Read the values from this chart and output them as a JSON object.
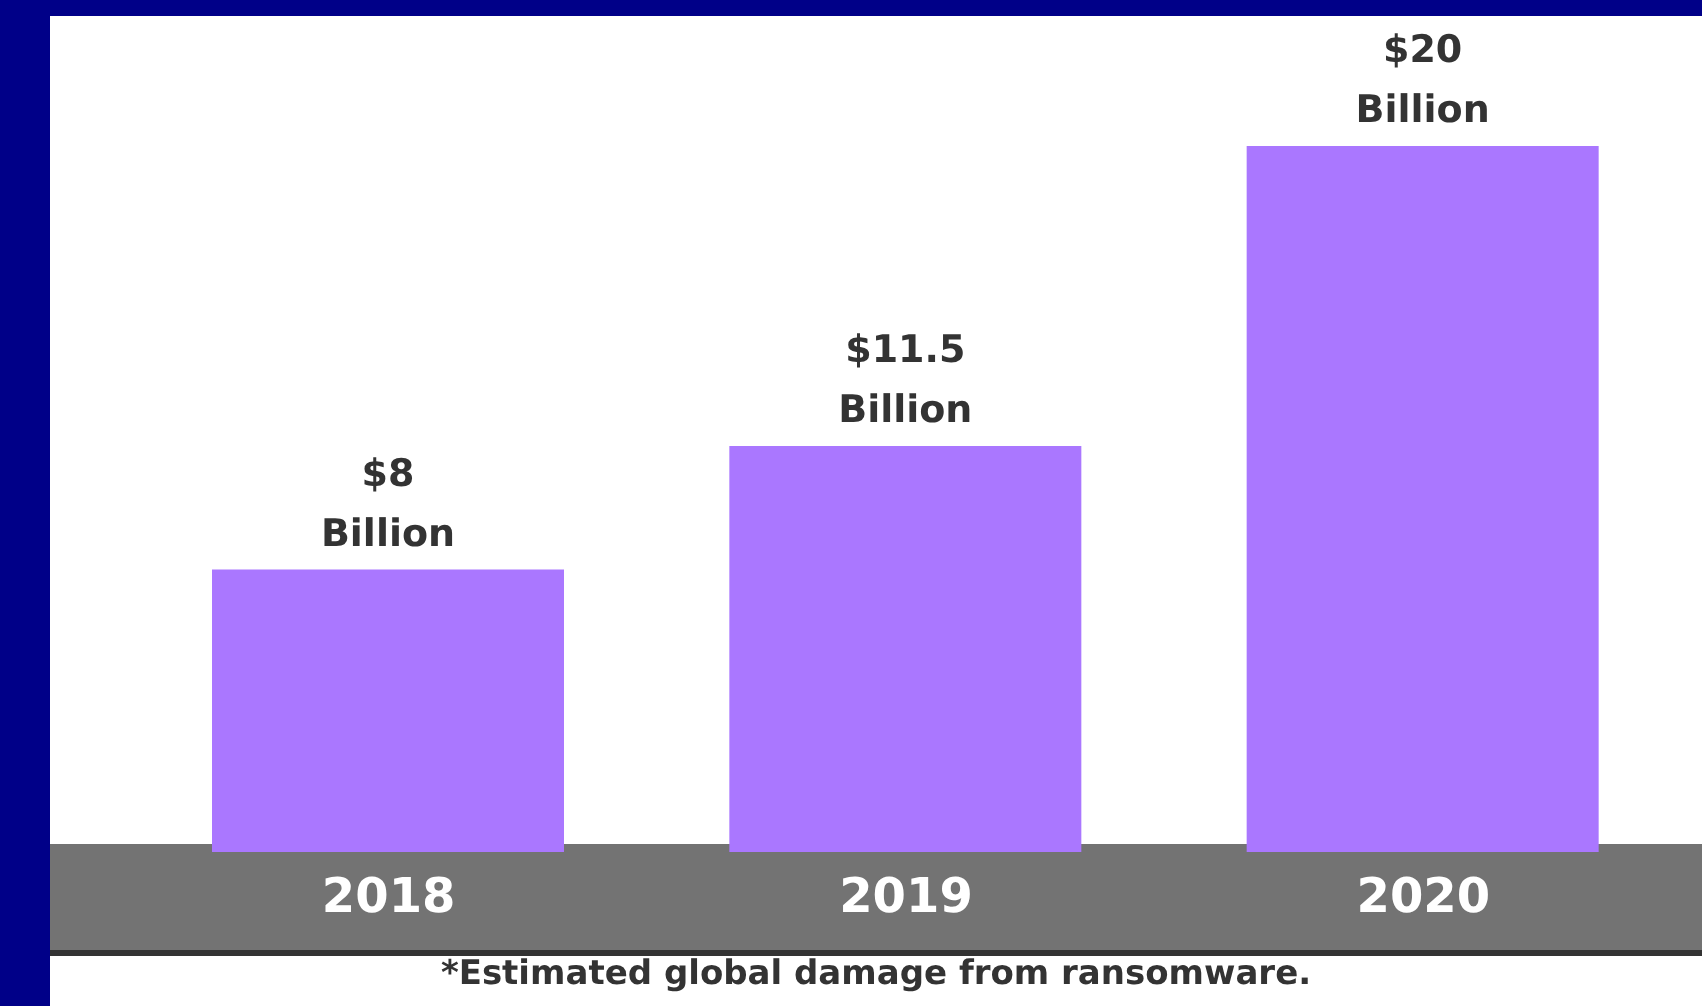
{
  "chart_data": {
    "type": "bar",
    "categories": [
      "2018",
      "2019",
      "2020"
    ],
    "values": [
      8,
      11.5,
      20
    ],
    "value_labels": [
      "$8 Billion",
      "$11.5 Billion",
      "$20 Billion"
    ],
    "color": "#aa77ff",
    "annotations": [
      "*Estimated global damage from ransomware."
    ],
    "grid": false,
    "legend": false
  }
}
